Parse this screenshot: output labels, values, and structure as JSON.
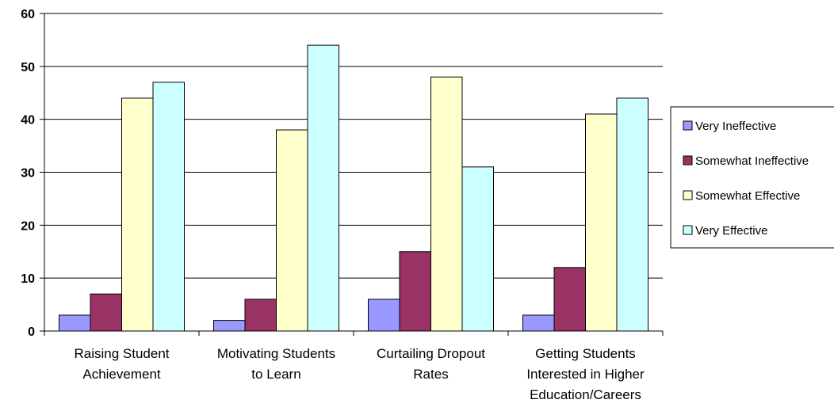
{
  "chart_data": {
    "type": "bar",
    "categories": [
      [
        "Raising Student",
        "Achievement"
      ],
      [
        "Motivating Students",
        "to Learn"
      ],
      [
        "Curtailing Dropout",
        "Rates"
      ],
      [
        "Getting Students",
        "Interested in Higher",
        "Education/Careers"
      ]
    ],
    "series": [
      {
        "name": "Very Ineffective",
        "color": "#9999ff",
        "values": [
          3,
          2,
          6,
          3
        ]
      },
      {
        "name": "Somewhat Ineffective",
        "color": "#993366",
        "values": [
          7,
          6,
          15,
          12
        ]
      },
      {
        "name": "Somewhat Effective",
        "color": "#ffffcc",
        "values": [
          44,
          38,
          48,
          41
        ]
      },
      {
        "name": "Very Effective",
        "color": "#ccffff",
        "values": [
          47,
          54,
          31,
          44
        ]
      }
    ],
    "ylim": [
      0,
      60
    ],
    "yticks": [
      "0",
      "10",
      "20",
      "30",
      "40",
      "50",
      "60"
    ],
    "grid": true,
    "legend_position": "right"
  }
}
